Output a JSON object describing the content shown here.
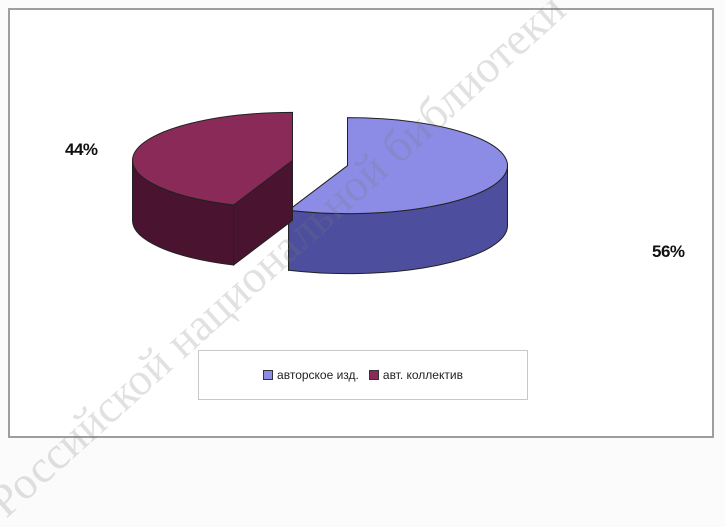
{
  "watermark": "Российской национальной библиотеки",
  "chart_data": {
    "type": "pie",
    "title": "",
    "slices": [
      {
        "name": "авторское изд.",
        "value": 56,
        "label": "56%",
        "color": "#8c8ce6",
        "side_color": "#4d4f9e"
      },
      {
        "name": "авт. коллектив",
        "value": 44,
        "label": "44%",
        "color": "#8a2a58",
        "side_color": "#4a1430"
      }
    ],
    "legend": {
      "position": "bottom"
    },
    "style": "3d-exploded"
  }
}
